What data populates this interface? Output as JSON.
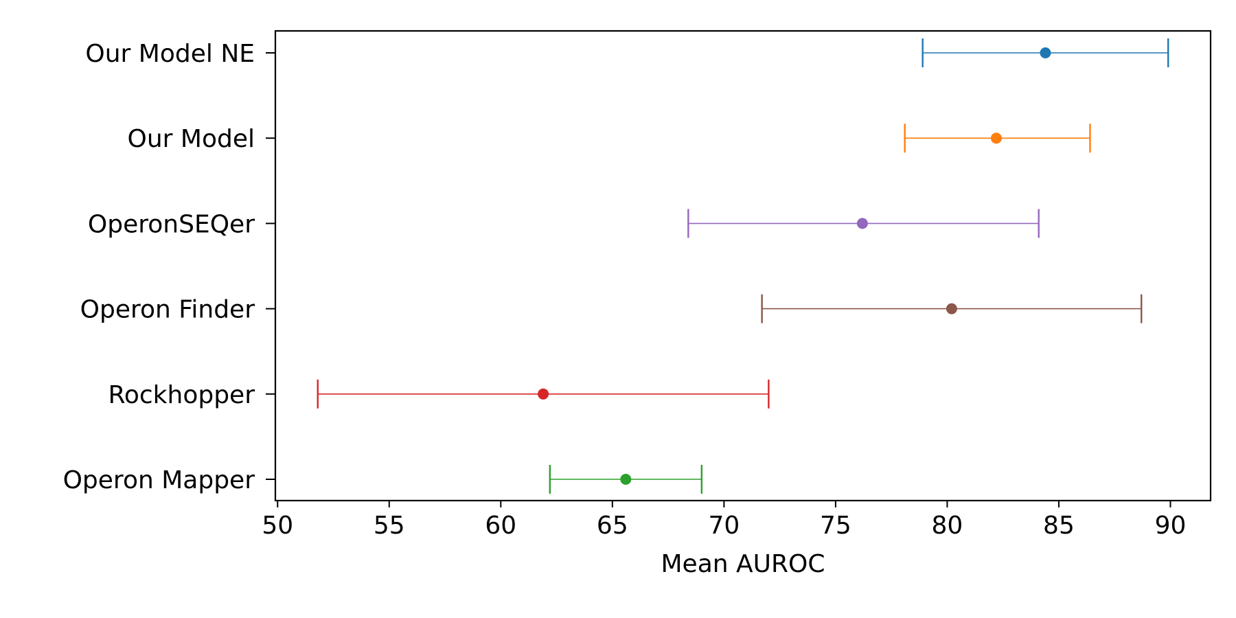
{
  "chart_data": {
    "type": "errorbar",
    "orientation": "horizontal",
    "title": "",
    "xlabel": "Mean AUROC",
    "ylabel": "",
    "xlim": [
      49.9,
      91.8
    ],
    "xticks": [
      50,
      55,
      60,
      65,
      70,
      75,
      80,
      85,
      90
    ],
    "grid": false,
    "legend": "none",
    "categories": [
      "Our Model NE",
      "Our Model",
      "OperonSEQer",
      "Operon Finder",
      "Rockhopper",
      "Operon Mapper"
    ],
    "series": [
      {
        "category": "Our Model NE",
        "mean": 84.4,
        "lower": 78.9,
        "upper": 89.9,
        "color": "#1f77b4"
      },
      {
        "category": "Our Model",
        "mean": 82.2,
        "lower": 78.1,
        "upper": 86.4,
        "color": "#ff7f0e"
      },
      {
        "category": "OperonSEQer",
        "mean": 76.2,
        "lower": 68.4,
        "upper": 84.1,
        "color": "#9467bd"
      },
      {
        "category": "Operon Finder",
        "mean": 80.2,
        "lower": 71.7,
        "upper": 88.7,
        "color": "#8c564b"
      },
      {
        "category": "Rockhopper",
        "mean": 61.9,
        "lower": 51.8,
        "upper": 72.0,
        "color": "#d62728"
      },
      {
        "category": "Operon Mapper",
        "mean": 65.6,
        "lower": 62.2,
        "upper": 69.0,
        "color": "#2ca02c"
      }
    ]
  }
}
